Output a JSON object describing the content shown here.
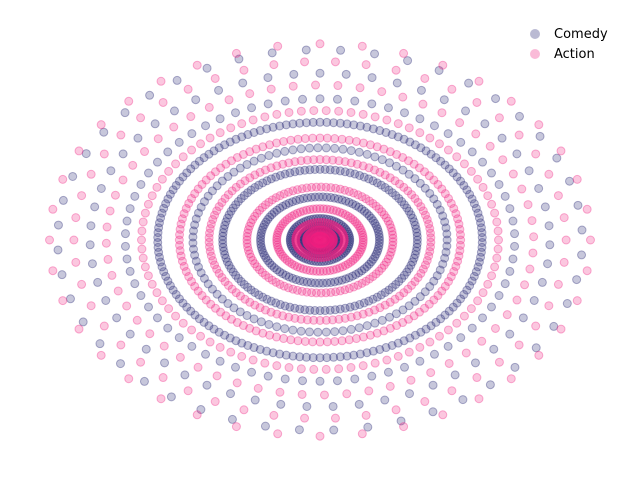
{
  "chart_data": {
    "type": "scatter",
    "title": "",
    "xlabel": "",
    "ylabel": "",
    "axes_visible": false,
    "grid": false,
    "legend_position": "top-right",
    "xlim": [
      -1.05,
      1.05
    ],
    "ylim": [
      -1.05,
      1.05
    ],
    "marker_alpha": 0.25,
    "series": [
      {
        "name": "Comedy",
        "color": "#1f1f70",
        "rings": [
          {
            "radius": 0.04,
            "count": 40,
            "phase": 0.0
          },
          {
            "radius": 0.07,
            "count": 60,
            "phase": 0.3
          },
          {
            "radius": 0.11,
            "count": 70,
            "phase": 0.1
          },
          {
            "radius": 0.22,
            "count": 95,
            "phase": 0.2
          },
          {
            "radius": 0.36,
            "count": 120,
            "phase": 0.05
          },
          {
            "radius": 0.47,
            "count": 95,
            "phase": 0.4
          },
          {
            "radius": 0.6,
            "count": 150,
            "phase": 0.15
          },
          {
            "radius": 0.72,
            "count": 70,
            "phase": 0.25
          },
          {
            "radius": 0.85,
            "count": 55,
            "phase": 0.05
          },
          {
            "radius": 0.97,
            "count": 48,
            "phase": 0.3
          }
        ]
      },
      {
        "name": "Action",
        "color": "#f02080",
        "rings": [
          {
            "radius": 0.02,
            "count": 40,
            "phase": 0.0
          },
          {
            "radius": 0.05,
            "count": 55,
            "phase": 0.2
          },
          {
            "radius": 0.09,
            "count": 65,
            "phase": 0.15
          },
          {
            "radius": 0.16,
            "count": 80,
            "phase": 0.35
          },
          {
            "radius": 0.27,
            "count": 95,
            "phase": 0.1
          },
          {
            "radius": 0.41,
            "count": 110,
            "phase": 0.25
          },
          {
            "radius": 0.52,
            "count": 120,
            "phase": 0.05
          },
          {
            "radius": 0.66,
            "count": 90,
            "phase": 0.3
          },
          {
            "radius": 0.79,
            "count": 60,
            "phase": 0.12
          },
          {
            "radius": 0.91,
            "count": 50,
            "phase": 0.2
          },
          {
            "radius": 1.0,
            "count": 40,
            "phase": 0.4
          }
        ]
      }
    ]
  }
}
